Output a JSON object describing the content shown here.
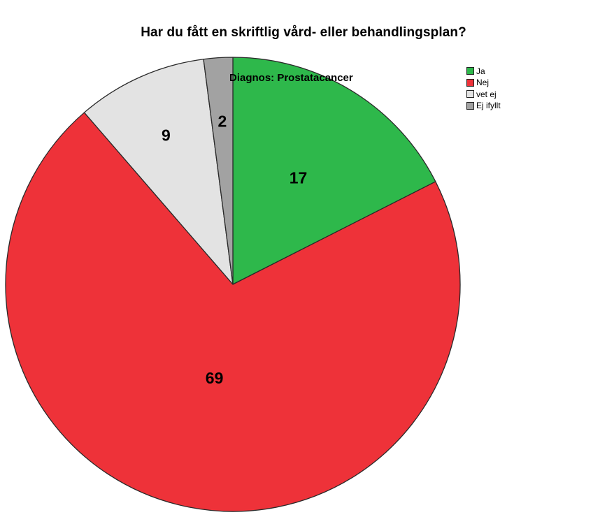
{
  "chart_data": {
    "type": "pie",
    "title": "Har du fått en skriftlig vård- eller behandlingsplan?",
    "subtitle": "Diagnos: Prostatacancer",
    "legend_position": "top-right",
    "categories": [
      "Ja",
      "Nej",
      "vet ej",
      "Ej ifyllt"
    ],
    "values": [
      17,
      69,
      9,
      2
    ],
    "data_labels": [
      "17",
      "69",
      "9",
      "2"
    ],
    "colors": [
      "#2eb84b",
      "#ee3239",
      "#e3e3e3",
      "#a2a2a2"
    ]
  }
}
